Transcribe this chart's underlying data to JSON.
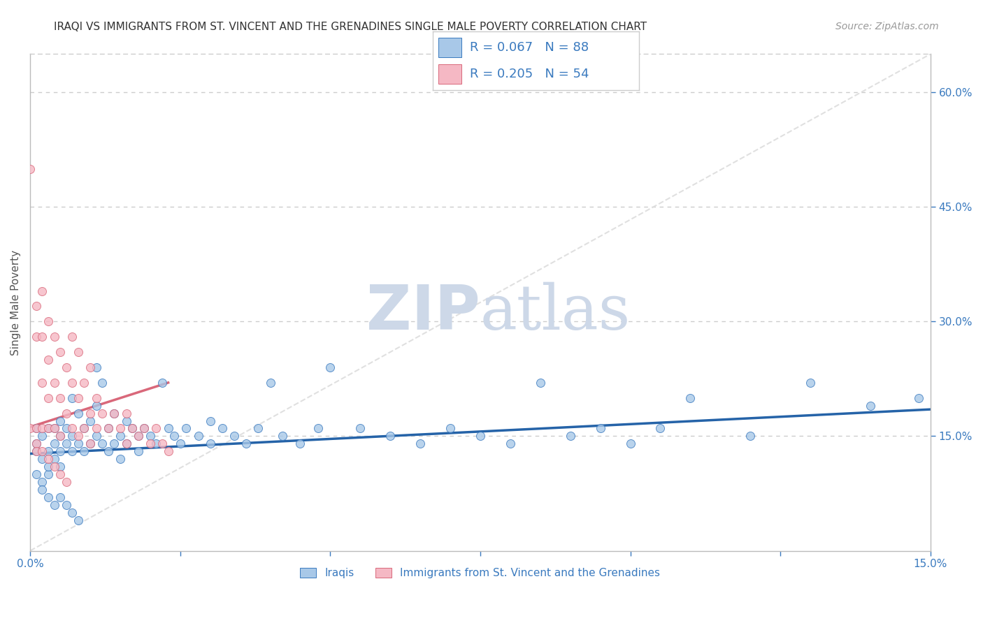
{
  "title": "IRAQI VS IMMIGRANTS FROM ST. VINCENT AND THE GRENADINES SINGLE MALE POVERTY CORRELATION CHART",
  "source": "Source: ZipAtlas.com",
  "ylabel": "Single Male Poverty",
  "xlim": [
    0,
    0.15
  ],
  "ylim": [
    0,
    0.65
  ],
  "xticks": [
    0.0,
    0.025,
    0.05,
    0.075,
    0.1,
    0.125,
    0.15
  ],
  "xtick_labels": [
    "0.0%",
    "",
    "",
    "",
    "",
    "",
    "15.0%"
  ],
  "ytick_positions_right": [
    0.15,
    0.3,
    0.45,
    0.6
  ],
  "ytick_labels_right": [
    "15.0%",
    "30.0%",
    "45.0%",
    "60.0%"
  ],
  "legend_r1": "R = 0.067",
  "legend_n1": "N = 88",
  "legend_r2": "R = 0.205",
  "legend_n2": "N = 54",
  "blue_fill": "#a8c8e8",
  "blue_edge": "#3a7abf",
  "pink_fill": "#f5b8c4",
  "pink_edge": "#d9687a",
  "blue_line": "#2563a8",
  "pink_line": "#d9687a",
  "diag_line": "#dddddd",
  "watermark_color": "#cdd8e8",
  "tick_color": "#3a7abf",
  "title_color": "#333333",
  "ylabel_color": "#555555",
  "source_color": "#999999",
  "iraq_x": [
    0.001,
    0.001,
    0.001,
    0.002,
    0.002,
    0.003,
    0.003,
    0.003,
    0.004,
    0.004,
    0.004,
    0.005,
    0.005,
    0.005,
    0.005,
    0.006,
    0.006,
    0.007,
    0.007,
    0.007,
    0.008,
    0.008,
    0.009,
    0.009,
    0.01,
    0.01,
    0.011,
    0.011,
    0.011,
    0.012,
    0.012,
    0.013,
    0.013,
    0.014,
    0.014,
    0.015,
    0.015,
    0.016,
    0.016,
    0.017,
    0.018,
    0.018,
    0.019,
    0.02,
    0.021,
    0.022,
    0.023,
    0.024,
    0.025,
    0.026,
    0.028,
    0.03,
    0.03,
    0.032,
    0.034,
    0.036,
    0.038,
    0.04,
    0.042,
    0.045,
    0.048,
    0.05,
    0.055,
    0.06,
    0.065,
    0.07,
    0.075,
    0.08,
    0.085,
    0.09,
    0.095,
    0.1,
    0.105,
    0.11,
    0.12,
    0.13,
    0.14,
    0.148,
    0.001,
    0.002,
    0.002,
    0.003,
    0.003,
    0.004,
    0.005,
    0.006,
    0.007,
    0.008
  ],
  "iraq_y": [
    0.16,
    0.14,
    0.13,
    0.15,
    0.12,
    0.16,
    0.13,
    0.1,
    0.14,
    0.16,
    0.12,
    0.15,
    0.17,
    0.13,
    0.11,
    0.14,
    0.16,
    0.15,
    0.2,
    0.13,
    0.14,
    0.18,
    0.16,
    0.13,
    0.17,
    0.14,
    0.24,
    0.19,
    0.15,
    0.22,
    0.14,
    0.16,
    0.13,
    0.18,
    0.14,
    0.15,
    0.12,
    0.17,
    0.14,
    0.16,
    0.15,
    0.13,
    0.16,
    0.15,
    0.14,
    0.22,
    0.16,
    0.15,
    0.14,
    0.16,
    0.15,
    0.14,
    0.17,
    0.16,
    0.15,
    0.14,
    0.16,
    0.22,
    0.15,
    0.14,
    0.16,
    0.24,
    0.16,
    0.15,
    0.14,
    0.16,
    0.15,
    0.14,
    0.22,
    0.15,
    0.16,
    0.14,
    0.16,
    0.2,
    0.15,
    0.22,
    0.19,
    0.2,
    0.1,
    0.09,
    0.08,
    0.07,
    0.11,
    0.06,
    0.07,
    0.06,
    0.05,
    0.04
  ],
  "svg_x": [
    0.0,
    0.0,
    0.001,
    0.001,
    0.001,
    0.001,
    0.002,
    0.002,
    0.002,
    0.002,
    0.003,
    0.003,
    0.003,
    0.003,
    0.004,
    0.004,
    0.004,
    0.005,
    0.005,
    0.005,
    0.006,
    0.006,
    0.007,
    0.007,
    0.007,
    0.008,
    0.008,
    0.008,
    0.009,
    0.009,
    0.01,
    0.01,
    0.01,
    0.011,
    0.011,
    0.012,
    0.013,
    0.014,
    0.015,
    0.016,
    0.016,
    0.017,
    0.018,
    0.019,
    0.02,
    0.021,
    0.022,
    0.023,
    0.001,
    0.002,
    0.003,
    0.004,
    0.005,
    0.006
  ],
  "svg_y": [
    0.5,
    0.16,
    0.32,
    0.28,
    0.16,
    0.14,
    0.34,
    0.28,
    0.22,
    0.16,
    0.3,
    0.25,
    0.2,
    0.16,
    0.28,
    0.22,
    0.16,
    0.26,
    0.2,
    0.15,
    0.24,
    0.18,
    0.28,
    0.22,
    0.16,
    0.26,
    0.2,
    0.15,
    0.22,
    0.16,
    0.24,
    0.18,
    0.14,
    0.2,
    0.16,
    0.18,
    0.16,
    0.18,
    0.16,
    0.18,
    0.14,
    0.16,
    0.15,
    0.16,
    0.14,
    0.16,
    0.14,
    0.13,
    0.13,
    0.13,
    0.12,
    0.11,
    0.1,
    0.09
  ],
  "iraq_trend_x": [
    0.0,
    0.15
  ],
  "iraq_trend_y": [
    0.127,
    0.185
  ],
  "svg_trend_x": [
    0.0,
    0.023
  ],
  "svg_trend_y": [
    0.162,
    0.22
  ]
}
